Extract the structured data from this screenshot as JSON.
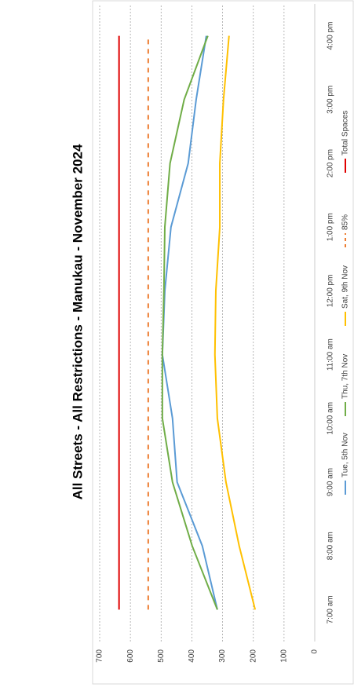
{
  "chart_data": {
    "type": "line",
    "title": "All Streets - All Restrictions - Manukau - November 2024",
    "categories": [
      "7:00 am",
      "8:00 am",
      "9:00 am",
      "10:00 am",
      "11:00 am",
      "12:00 pm",
      "1:00 pm",
      "2:00 pm",
      "3:00 pm",
      "4:00 pm"
    ],
    "series": [
      {
        "name": "Tue, 5th Nov",
        "color": "#5b9bd5",
        "values": [
          317,
          366,
          448,
          463,
          496,
          488,
          468,
          412,
          386,
          353
        ]
      },
      {
        "name": "Thu, 7th Nov",
        "color": "#70ad47",
        "values": [
          317,
          399,
          463,
          496,
          496,
          491,
          488,
          471,
          425,
          348
        ]
      },
      {
        "name": "Sat, 9th Nov",
        "color": "#ffc000",
        "values": [
          194,
          246,
          289,
          317,
          325,
          322,
          309,
          309,
          297,
          279
        ]
      },
      {
        "name": "85%",
        "color": "#ed7d31",
        "dashed": true,
        "values": [
          542,
          542,
          542,
          542,
          542,
          542,
          542,
          542,
          542,
          542
        ]
      },
      {
        "name": "Total Spaces",
        "color": "#e00000",
        "values": [
          637,
          637,
          637,
          637,
          637,
          637,
          637,
          637,
          637,
          637
        ]
      }
    ],
    "ylim": [
      0,
      700
    ],
    "yticks": [
      0,
      100,
      200,
      300,
      400,
      500,
      600,
      700
    ],
    "grid": true
  }
}
